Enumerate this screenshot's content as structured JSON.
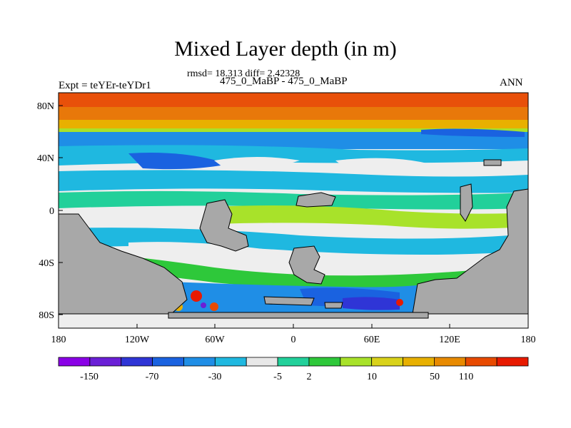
{
  "title": "Mixed Layer depth (in m)",
  "stats_line": "rmsd= 18.313 diff= 2.42328",
  "subtitle_left": "Expt = teYEr-teYDr1",
  "subtitle_center": "475_0_MaBP - 475_0_MaBP",
  "subtitle_right": "ANN",
  "axes": {
    "x_ticks": [
      "180",
      "120W",
      "60W",
      "0",
      "60E",
      "120E",
      "180"
    ],
    "y_ticks": [
      "80N",
      "40N",
      "0",
      "40S",
      "80S"
    ]
  },
  "colorbar": {
    "colors": [
      "#8a00e6",
      "#6a1fd6",
      "#2f35d6",
      "#1a62e0",
      "#1f8ee6",
      "#1fb8e0",
      "#e8e8e8",
      "#22d09a",
      "#2ec83a",
      "#a8e22a",
      "#d9d21a",
      "#e8b000",
      "#e88a00",
      "#e84a00",
      "#e81a00"
    ],
    "labels": [
      "-150",
      "-70",
      "-30",
      "-5",
      "2",
      "10",
      "50",
      "110"
    ]
  },
  "colors": {
    "land": "#a8a8a8",
    "no_change": "#eeeeee",
    "north_band": "#e8780a"
  }
}
